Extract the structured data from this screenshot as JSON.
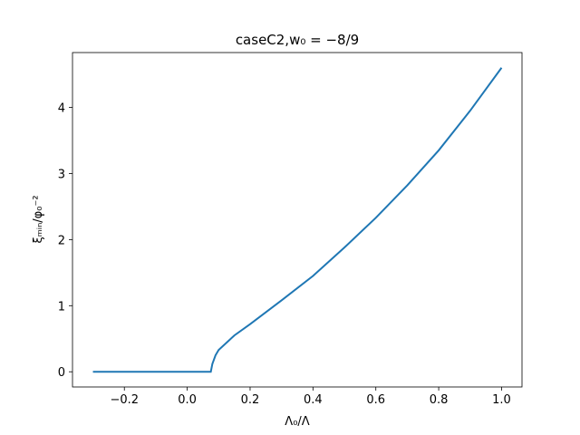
{
  "chart_data": {
    "type": "line",
    "title": "caseC2,w₀ = −8/9",
    "x_label": "Λ₀/Λ",
    "y_label": "ξₘᵢₙ/φ₀⁻²",
    "x": [
      -0.3,
      0.075,
      0.08,
      0.09,
      0.1,
      0.15,
      0.2,
      0.3,
      0.4,
      0.5,
      0.6,
      0.7,
      0.8,
      0.9,
      1.0
    ],
    "series": [
      {
        "name": "ξ",
        "color": "#1f77b4",
        "values": [
          0,
          0,
          0.12,
          0.25,
          0.33,
          0.55,
          0.72,
          1.08,
          1.45,
          1.88,
          2.33,
          2.82,
          3.35,
          3.95,
          4.6
        ]
      }
    ],
    "xlim": [
      -0.365,
      1.065
    ],
    "ylim": [
      -0.23,
      4.83
    ],
    "xticks": [
      {
        "value": -0.2,
        "label": "−0.2"
      },
      {
        "value": 0,
        "label": "0.0"
      },
      {
        "value": 0.2,
        "label": "0.2"
      },
      {
        "value": 0.4,
        "label": "0.4"
      },
      {
        "value": 0.6,
        "label": "0.6"
      },
      {
        "value": 0.8,
        "label": "0.8"
      },
      {
        "value": 1.0,
        "label": "1.0"
      }
    ],
    "yticks": [
      0,
      1,
      2,
      3,
      4
    ]
  }
}
